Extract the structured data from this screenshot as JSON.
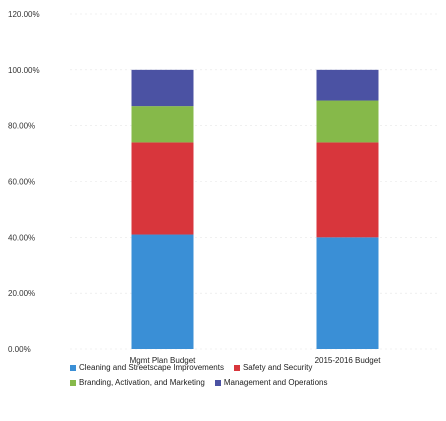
{
  "chart_data": {
    "type": "bar",
    "stacked": true,
    "categories": [
      "Mgmt Plan Budget",
      "2015-2016 Budget"
    ],
    "ylim": [
      0,
      120
    ],
    "yticks": [
      "0.00%",
      "20.00%",
      "40.00%",
      "60.00%",
      "80.00%",
      "100.00%",
      "120.00%"
    ],
    "grid": false,
    "legend_placement": "bottom",
    "series": [
      {
        "name": "Cleaning and Streetscape Improvements",
        "values": [
          41,
          40
        ],
        "color": "#3a8fd6"
      },
      {
        "name": "Safety and Security",
        "values": [
          33,
          34
        ],
        "color": "#d8363c"
      },
      {
        "name": "Branding, Activation, and Marketing",
        "values": [
          13,
          15
        ],
        "color": "#86b94a"
      },
      {
        "name": "Management and Operations",
        "values": [
          13,
          11
        ],
        "color": "#4b52a3"
      }
    ]
  }
}
